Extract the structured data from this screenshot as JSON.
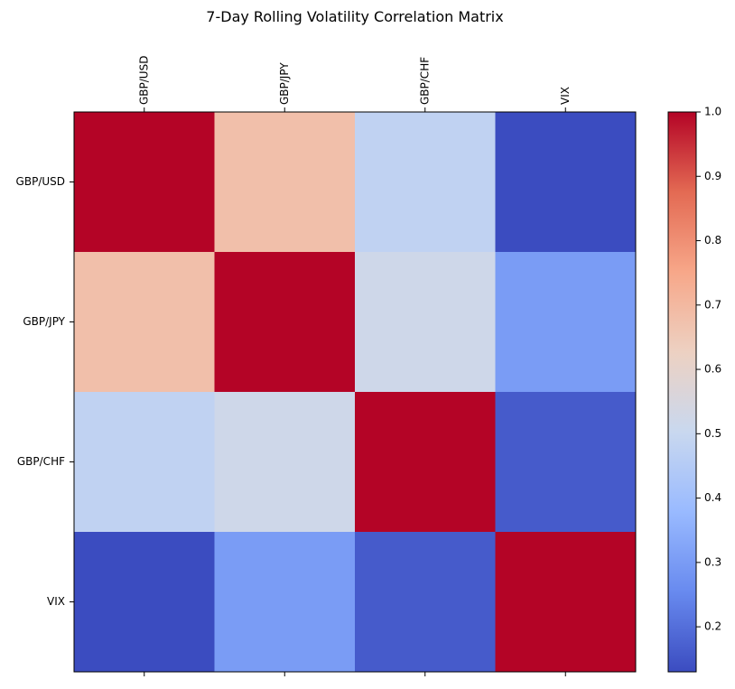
{
  "chart_data": {
    "type": "heatmap",
    "title": "7-Day Rolling Volatility Correlation Matrix",
    "xlabel": "",
    "ylabel": "",
    "x_categories": [
      "GBP/USD",
      "GBP/JPY",
      "GBP/CHF",
      "VIX"
    ],
    "y_categories": [
      "GBP/USD",
      "GBP/JPY",
      "GBP/CHF",
      "VIX"
    ],
    "values": [
      [
        1.0,
        0.68,
        0.48,
        0.13
      ],
      [
        0.68,
        1.0,
        0.52,
        0.3
      ],
      [
        0.48,
        0.52,
        1.0,
        0.16
      ],
      [
        0.13,
        0.3,
        0.16,
        1.0
      ]
    ],
    "colormap": "coolwarm",
    "vmin": 0.13,
    "vmax": 1.0,
    "x_tick_position": "top",
    "grid": false,
    "colorbar": {
      "placement": "right",
      "ticks": [
        0.2,
        0.3,
        0.4,
        0.5,
        0.6,
        0.7,
        0.8,
        0.9,
        1.0
      ],
      "tick_labels": [
        "0.2",
        "0.3",
        "0.4",
        "0.5",
        "0.6",
        "0.7",
        "0.8",
        "0.9",
        "1.0"
      ]
    },
    "colormap_stops": [
      "#3b4cc0",
      "#688aef",
      "#99baff",
      "#c9d8ef",
      "#edd1c2",
      "#f7a789",
      "#e36a53",
      "#b40426"
    ]
  }
}
